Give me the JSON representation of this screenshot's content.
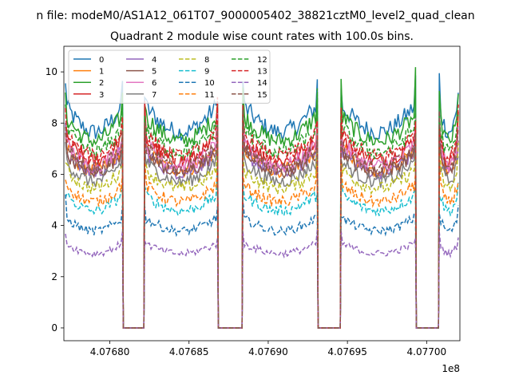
{
  "chart_data": {
    "type": "line",
    "suptitle": "n file: modeM0/AS1A12_061T07_9000005402_38821cztM0_level2_quad_clean",
    "title": "Quadrant 2 module wise count rates with 100.0s bins.",
    "xlabel": "",
    "ylabel": "",
    "x_offset_label": "1e8",
    "xlim": [
      4.076771,
      4.077021
    ],
    "ylim": [
      -0.5,
      11.0
    ],
    "x_ticks": [
      4.0768,
      4.07685,
      4.0769,
      4.07695,
      4.077
    ],
    "x_tick_labels": [
      "4.07680",
      "4.07685",
      "4.07690",
      "4.07695",
      "4.07700"
    ],
    "y_ticks": [
      0,
      2,
      4,
      6,
      8,
      10
    ],
    "y_tick_labels": [
      "0",
      "2",
      "4",
      "6",
      "8",
      "10"
    ],
    "legend_position": "upper-left",
    "legend_columns": 4,
    "grid": false,
    "data_segments": [
      [
        4.076772,
        4.076808
      ],
      [
        4.076822,
        4.076868
      ],
      [
        4.076884,
        4.076931
      ],
      [
        4.076946,
        4.076993
      ],
      [
        4.077008,
        4.07702
      ]
    ],
    "gap_floor": 0,
    "series": [
      {
        "name": "0",
        "style": "solid",
        "color": "#1f77b4",
        "level": 8.7
      },
      {
        "name": "1",
        "style": "solid",
        "color": "#ff7f0e",
        "level": 7.0
      },
      {
        "name": "2",
        "style": "solid",
        "color": "#2ca02c",
        "level": 8.3
      },
      {
        "name": "3",
        "style": "solid",
        "color": "#d62728",
        "level": 7.4
      },
      {
        "name": "4",
        "style": "solid",
        "color": "#9467bd",
        "level": 6.9
      },
      {
        "name": "5",
        "style": "solid",
        "color": "#8c564b",
        "level": 6.9
      },
      {
        "name": "6",
        "style": "solid",
        "color": "#e377c2",
        "level": 7.2
      },
      {
        "name": "7",
        "style": "solid",
        "color": "#7f7f7f",
        "level": 6.5
      },
      {
        "name": "8",
        "style": "dashed",
        "color": "#bcbd22",
        "level": 6.2
      },
      {
        "name": "9",
        "style": "dashed",
        "color": "#17becf",
        "level": 5.2
      },
      {
        "name": "10",
        "style": "dashed",
        "color": "#1f77b4",
        "level": 4.3
      },
      {
        "name": "11",
        "style": "dashed",
        "color": "#ff7f0e",
        "level": 5.6
      },
      {
        "name": "12",
        "style": "dashed",
        "color": "#2ca02c",
        "level": 7.8
      },
      {
        "name": "13",
        "style": "dashed",
        "color": "#d62728",
        "level": 7.6
      },
      {
        "name": "14",
        "style": "dashed",
        "color": "#9467bd",
        "level": 3.3
      },
      {
        "name": "15",
        "style": "dashed",
        "color": "#8c564b",
        "level": 7.1
      }
    ]
  }
}
